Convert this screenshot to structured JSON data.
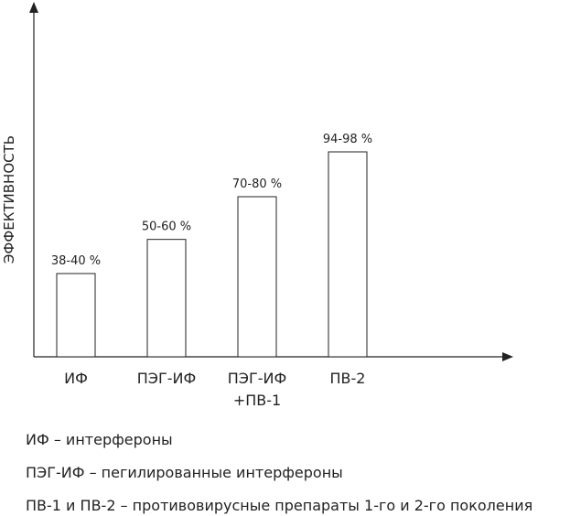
{
  "chart_data": {
    "type": "bar",
    "y_label": "ЭФФЕКТИВНОСТЬ",
    "categories": [
      "ИФ",
      "ПЭГ-ИФ",
      "ПЭГ-ИФ\n+ПВ-1",
      "ПВ-2"
    ],
    "values": [
      39,
      55,
      75,
      96
    ],
    "value_labels": [
      "38-40 %",
      "50-60 %",
      "70-80 %",
      "94-98 %"
    ],
    "color": "#ffffff",
    "ylim": [
      0,
      165
    ]
  },
  "notes": [
    "ИФ – интерфероны",
    "ПЭГ-ИФ – пегилированные интерфероны",
    "ПВ-1 и ПВ-2  – противовирусные препараты 1-го и 2-го поколения"
  ]
}
